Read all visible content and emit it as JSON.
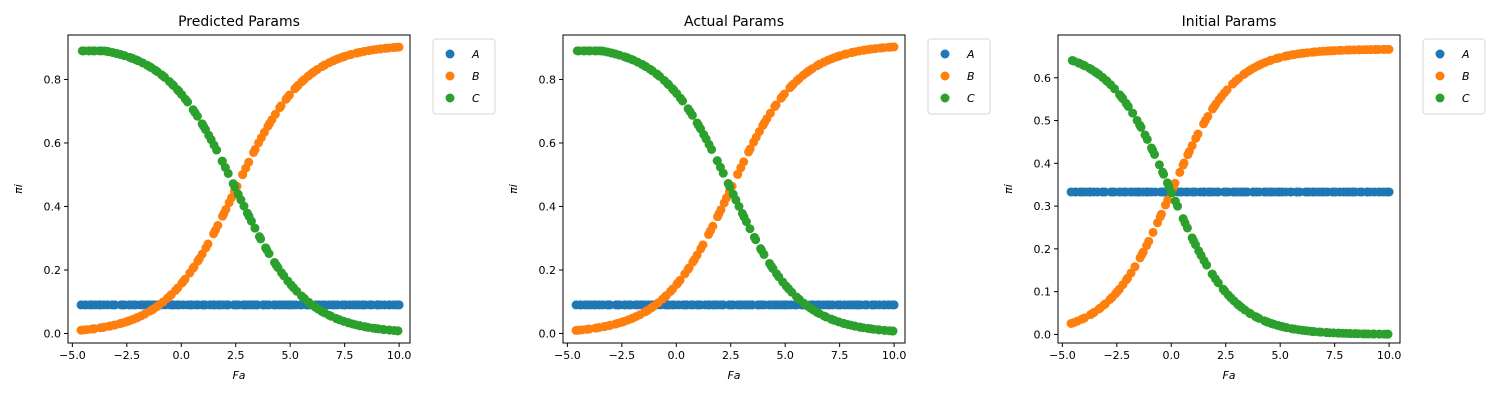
{
  "figure": {
    "background": "#ffffff"
  },
  "chart_data": [
    {
      "type": "scatter",
      "title": "Predicted Params",
      "xlabel": "Fa",
      "ylabel": "πi",
      "xlim": [
        -5.2,
        10.5
      ],
      "ylim": [
        -0.03,
        0.94
      ],
      "xticks": [
        -5.0,
        -2.5,
        0.0,
        2.5,
        5.0,
        7.5,
        10.0
      ],
      "xtick_labels": [
        "−5.0",
        "−2.5",
        "0.0",
        "2.5",
        "5.0",
        "7.5",
        "10.0"
      ],
      "yticks": [
        0.0,
        0.2,
        0.4,
        0.6,
        0.8
      ],
      "ytick_labels": [
        "0.0",
        "0.2",
        "0.4",
        "0.6",
        "0.8"
      ],
      "legend_position": "outside-top-right",
      "model": {
        "x_range": [
          -4.6,
          10.0
        ],
        "n_points": 110,
        "mid": 2.5,
        "slope": 0.63,
        "floor": 0.0,
        "top": 0.91,
        "a_level": 0.09
      },
      "series": [
        {
          "name": "A",
          "color": "#1f77b4",
          "x": [
            -4.6,
            -2.5,
            0.0,
            2.5,
            5.0,
            7.5,
            10.0
          ],
          "y": [
            0.09,
            0.09,
            0.09,
            0.09,
            0.09,
            0.09,
            0.09
          ]
        },
        {
          "name": "B",
          "color": "#ff7f0e",
          "x": [
            -4.6,
            -2.5,
            0.0,
            2.5,
            5.0,
            7.5,
            10.0
          ],
          "y": [
            0.02,
            0.06,
            0.16,
            0.45,
            0.76,
            0.88,
            0.9
          ]
        },
        {
          "name": "C",
          "color": "#2ca02c",
          "x": [
            -4.6,
            -2.5,
            0.0,
            2.5,
            5.0,
            7.5,
            10.0
          ],
          "y": [
            0.89,
            0.85,
            0.75,
            0.46,
            0.15,
            0.03,
            0.01
          ]
        }
      ]
    },
    {
      "type": "scatter",
      "title": "Actual Params",
      "xlabel": "Fa",
      "ylabel": "πi",
      "xlim": [
        -5.2,
        10.5
      ],
      "ylim": [
        -0.03,
        0.94
      ],
      "xticks": [
        -5.0,
        -2.5,
        0.0,
        2.5,
        5.0,
        7.5,
        10.0
      ],
      "xtick_labels": [
        "−5.0",
        "−2.5",
        "0.0",
        "2.5",
        "5.0",
        "7.5",
        "10.0"
      ],
      "yticks": [
        0.0,
        0.2,
        0.4,
        0.6,
        0.8
      ],
      "ytick_labels": [
        "0.0",
        "0.2",
        "0.4",
        "0.6",
        "0.8"
      ],
      "legend_position": "outside-top-right",
      "model": {
        "x_range": [
          -4.6,
          10.0
        ],
        "n_points": 110,
        "mid": 2.5,
        "slope": 0.64,
        "floor": 0.0,
        "top": 0.91,
        "a_level": 0.09
      },
      "series": [
        {
          "name": "A",
          "color": "#1f77b4",
          "x": [
            -4.6,
            -2.5,
            0.0,
            2.5,
            5.0,
            7.5,
            10.0
          ],
          "y": [
            0.09,
            0.09,
            0.09,
            0.09,
            0.09,
            0.09,
            0.09
          ]
        },
        {
          "name": "B",
          "color": "#ff7f0e",
          "x": [
            -4.6,
            -2.5,
            0.0,
            2.5,
            5.0,
            7.5,
            10.0
          ],
          "y": [
            0.02,
            0.06,
            0.18,
            0.46,
            0.77,
            0.88,
            0.91
          ]
        },
        {
          "name": "C",
          "color": "#2ca02c",
          "x": [
            -4.6,
            -2.5,
            0.0,
            2.5,
            5.0,
            7.5,
            10.0
          ],
          "y": [
            0.89,
            0.85,
            0.73,
            0.45,
            0.14,
            0.03,
            0.01
          ]
        }
      ]
    },
    {
      "type": "scatter",
      "title": "Initial Params",
      "xlabel": "Fa",
      "ylabel": "πi",
      "xlim": [
        -5.2,
        10.5
      ],
      "ylim": [
        -0.02,
        0.7
      ],
      "xticks": [
        -5.0,
        -2.5,
        0.0,
        2.5,
        5.0,
        7.5,
        10.0
      ],
      "xtick_labels": [
        "−5.0",
        "−2.5",
        "0.0",
        "2.5",
        "5.0",
        "7.5",
        "10.0"
      ],
      "yticks": [
        0.0,
        0.1,
        0.2,
        0.3,
        0.4,
        0.5,
        0.6
      ],
      "ytick_labels": [
        "0.0",
        "0.1",
        "0.2",
        "0.3",
        "0.4",
        "0.5",
        "0.6"
      ],
      "legend_position": "outside-top-right",
      "model": {
        "x_range": [
          -4.6,
          10.0
        ],
        "n_points": 110,
        "mid": 0.0,
        "slope": 0.7,
        "floor": 0.0,
        "top": 0.667,
        "a_level": 0.333
      },
      "series": [
        {
          "name": "A",
          "color": "#1f77b4",
          "x": [
            -4.6,
            -2.5,
            0.0,
            2.5,
            5.0,
            7.5,
            10.0
          ],
          "y": [
            0.333,
            0.333,
            0.333,
            0.333,
            0.333,
            0.333,
            0.333
          ]
        },
        {
          "name": "B",
          "color": "#ff7f0e",
          "x": [
            -4.6,
            -2.5,
            0.0,
            2.5,
            5.0,
            7.5,
            10.0
          ],
          "y": [
            0.03,
            0.1,
            0.33,
            0.57,
            0.64,
            0.66,
            0.667
          ]
        },
        {
          "name": "C",
          "color": "#2ca02c",
          "x": [
            -4.6,
            -2.5,
            0.0,
            2.5,
            5.0,
            7.5,
            10.0
          ],
          "y": [
            0.63,
            0.56,
            0.33,
            0.1,
            0.03,
            0.007,
            0.001
          ]
        }
      ]
    }
  ]
}
